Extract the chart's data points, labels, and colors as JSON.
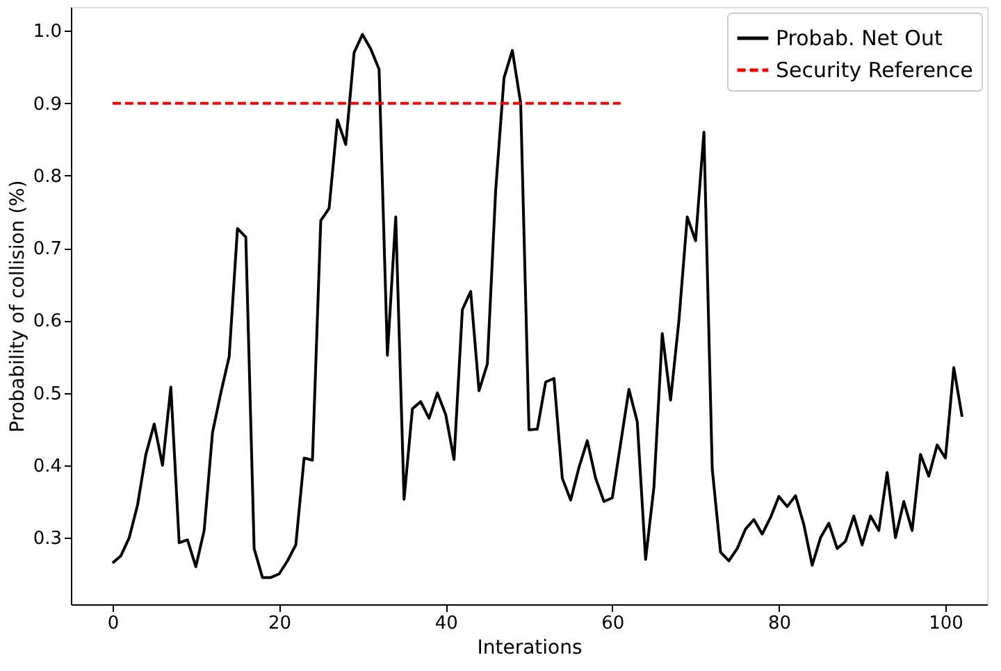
{
  "chart_data": {
    "type": "line",
    "xlabel": "Interations",
    "ylabel": "Probability of collision (%)",
    "x": [
      0,
      1,
      2,
      3,
      4,
      5,
      6,
      7,
      8,
      9,
      10,
      11,
      12,
      13,
      14,
      15,
      16,
      17,
      18,
      19,
      20,
      21,
      22,
      23,
      24,
      25,
      26,
      27,
      28,
      29,
      30,
      31,
      32,
      33,
      34,
      35,
      36,
      37,
      38,
      39,
      40,
      41,
      42,
      43,
      44,
      45,
      46,
      47,
      48,
      49,
      50,
      51,
      52,
      53,
      54,
      55,
      56,
      57,
      58,
      59,
      60,
      61,
      62,
      63,
      64,
      65,
      66,
      67,
      68,
      69,
      70,
      71,
      72,
      73,
      74,
      75,
      76,
      77,
      78,
      79,
      80,
      81,
      82,
      83,
      84,
      85,
      86,
      87,
      88,
      89,
      90,
      91,
      92,
      93,
      94,
      95,
      96,
      97,
      98,
      99,
      100,
      101,
      102
    ],
    "series": [
      {
        "name": "Probab. Net Out",
        "color": "#000000",
        "line_style": "solid",
        "values": [
          0.265,
          0.275,
          0.3,
          0.345,
          0.415,
          0.457,
          0.4,
          0.508,
          0.293,
          0.297,
          0.26,
          0.31,
          0.445,
          0.5,
          0.55,
          0.727,
          0.715,
          0.285,
          0.245,
          0.245,
          0.25,
          0.268,
          0.29,
          0.41,
          0.407,
          0.738,
          0.755,
          0.877,
          0.843,
          0.97,
          0.995,
          0.975,
          0.947,
          0.552,
          0.743,
          0.353,
          0.478,
          0.488,
          0.465,
          0.5,
          0.47,
          0.408,
          0.615,
          0.64,
          0.503,
          0.54,
          0.78,
          0.935,
          0.973,
          0.9,
          0.449,
          0.45,
          0.515,
          0.52,
          0.382,
          0.352,
          0.397,
          0.434,
          0.382,
          0.35,
          0.355,
          0.43,
          0.505,
          0.46,
          0.27,
          0.37,
          0.582,
          0.49,
          0.6,
          0.743,
          0.71,
          0.86,
          0.395,
          0.28,
          0.268,
          0.285,
          0.312,
          0.325,
          0.305,
          0.328,
          0.357,
          0.343,
          0.358,
          0.318,
          0.262,
          0.3,
          0.32,
          0.285,
          0.295,
          0.33,
          0.29,
          0.33,
          0.31,
          0.39,
          0.3,
          0.35,
          0.31,
          0.415,
          0.385,
          0.428,
          0.41,
          0.535,
          0.467
        ]
      },
      {
        "name": "Security Reference",
        "color": "#ff0000",
        "line_style": "dashed",
        "x": [
          0,
          61
        ],
        "values": [
          0.9,
          0.9
        ]
      }
    ],
    "xlim": [
      -5,
      105
    ],
    "ylim": [
      0.208,
      1.033
    ],
    "xticks": [
      0,
      20,
      40,
      60,
      80,
      100
    ],
    "yticks": [
      0.3,
      0.4,
      0.5,
      0.6,
      0.7,
      0.8,
      0.9,
      {
        "value": 1.0,
        "label": "1.0"
      }
    ],
    "grid": false,
    "legend": "top right",
    "marker": "none"
  }
}
